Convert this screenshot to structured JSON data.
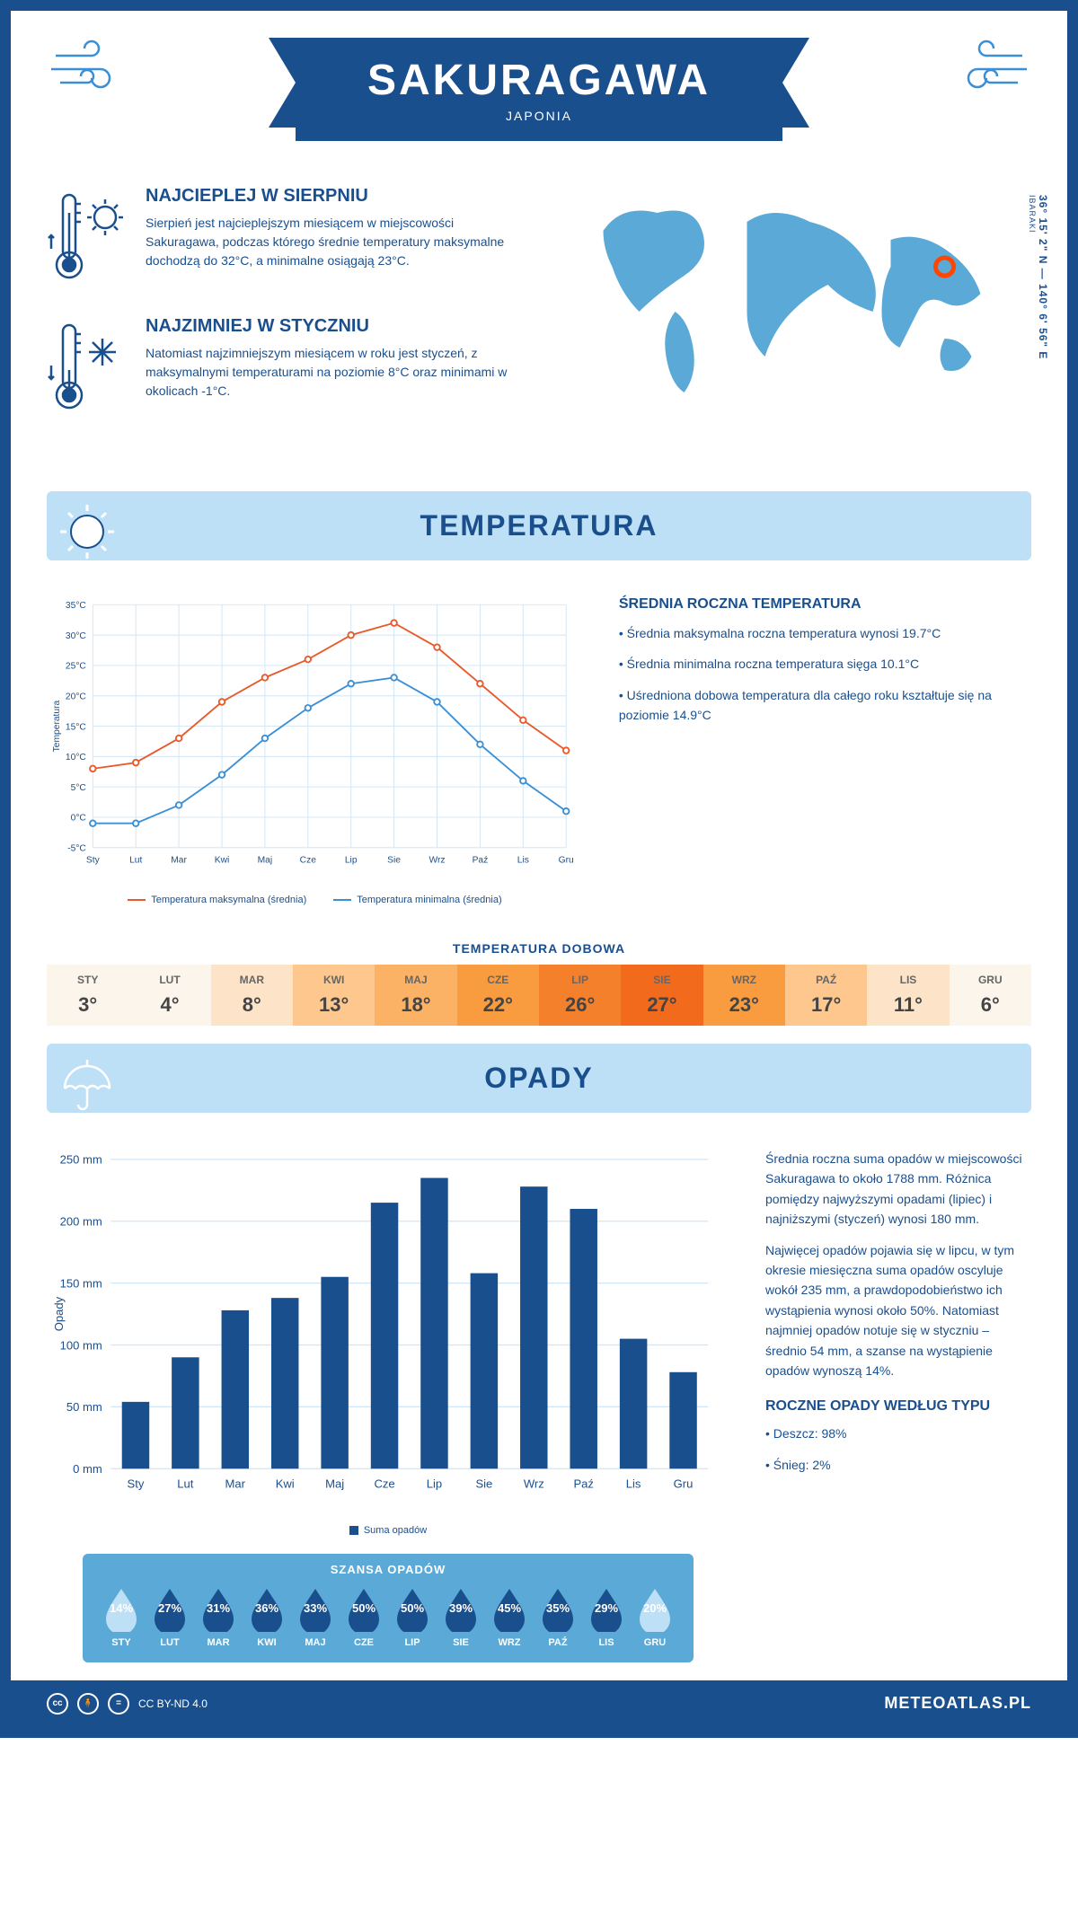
{
  "header": {
    "title": "SAKURAGAWA",
    "subtitle": "JAPONIA"
  },
  "coords": {
    "line": "36° 15' 2\" N — 140° 6' 56\" E",
    "region": "IBARAKI"
  },
  "facts": {
    "warm": {
      "title": "NAJCIEPLEJ W SIERPNIU",
      "text": "Sierpień jest najcieplejszym miesiącem w miejscowości Sakuragawa, podczas którego średnie temperatury maksymalne dochodzą do 32°C, a minimalne osiągają 23°C."
    },
    "cold": {
      "title": "NAJZIMNIEJ W STYCZNIU",
      "text": "Natomiast najzimniejszym miesiącem w roku jest styczeń, z maksymalnymi temperaturami na poziomie 8°C oraz minimami w okolicach -1°C."
    }
  },
  "temperature_section": {
    "title": "TEMPERATURA",
    "summary_title": "ŚREDNIA ROCZNA TEMPERATURA",
    "bullets": [
      "• Średnia maksymalna roczna temperatura wynosi 19.7°C",
      "• Średnia minimalna roczna temperatura sięga 10.1°C",
      "• Uśredniona dobowa temperatura dla całego roku kształtuje się na poziomie 14.9°C"
    ],
    "chart": {
      "type": "line",
      "months": [
        "Sty",
        "Lut",
        "Mar",
        "Kwi",
        "Maj",
        "Cze",
        "Lip",
        "Sie",
        "Wrz",
        "Paź",
        "Lis",
        "Gru"
      ],
      "max_series": [
        8,
        9,
        13,
        19,
        23,
        26,
        30,
        32,
        28,
        22,
        16,
        11
      ],
      "min_series": [
        -1,
        -1,
        2,
        7,
        13,
        18,
        22,
        23,
        19,
        12,
        6,
        1
      ],
      "max_color": "#e85a2a",
      "min_color": "#3a8fd6",
      "ylabel": "Temperatura",
      "ylim": [
        -5,
        35
      ],
      "ytick_step": 5,
      "grid_color": "#d0e5f5",
      "background": "#ffffff",
      "legend_max": "Temperatura maksymalna (średnia)",
      "legend_min": "Temperatura minimalna (średnia)"
    },
    "daily_title": "TEMPERATURA DOBOWA",
    "daily": {
      "months": [
        "STY",
        "LUT",
        "MAR",
        "KWI",
        "MAJ",
        "CZE",
        "LIP",
        "SIE",
        "WRZ",
        "PAŹ",
        "LIS",
        "GRU"
      ],
      "values": [
        "3°",
        "4°",
        "8°",
        "13°",
        "18°",
        "22°",
        "26°",
        "27°",
        "23°",
        "17°",
        "11°",
        "6°"
      ],
      "colors": [
        "#fbf5ec",
        "#fbf5ec",
        "#fde4c8",
        "#fdc78e",
        "#fcb264",
        "#f99b3f",
        "#f5802c",
        "#f26a1b",
        "#f99b3f",
        "#fdc78e",
        "#fde4c8",
        "#fbf5ec"
      ]
    }
  },
  "rain_section": {
    "title": "OPADY",
    "paragraphs": [
      "Średnia roczna suma opadów w miejscowości Sakuragawa to około 1788 mm. Różnica pomiędzy najwyższymi opadami (lipiec) i najniższymi (styczeń) wynosi 180 mm.",
      "Najwięcej opadów pojawia się w lipcu, w tym okresie miesięczna suma opadów oscyluje wokół 235 mm, a prawdopodobieństwo ich wystąpienia wynosi około 50%. Natomiast najmniej opadów notuje się w styczniu – średnio 54 mm, a szanse na wystąpienie opadów wynoszą 14%."
    ],
    "chart": {
      "type": "bar",
      "months": [
        "Sty",
        "Lut",
        "Mar",
        "Kwi",
        "Maj",
        "Cze",
        "Lip",
        "Sie",
        "Wrz",
        "Paź",
        "Lis",
        "Gru"
      ],
      "values": [
        54,
        90,
        128,
        138,
        155,
        215,
        235,
        158,
        228,
        210,
        105,
        78
      ],
      "bar_color": "#1a4f8e",
      "ylabel": "Opady",
      "ylim": [
        0,
        250
      ],
      "ytick_step": 50,
      "grid_color": "#d0e5f5",
      "legend": "Suma opadów"
    },
    "chance_title": "SZANSA OPADÓW",
    "chance": {
      "months": [
        "STY",
        "LUT",
        "MAR",
        "KWI",
        "MAJ",
        "CZE",
        "LIP",
        "SIE",
        "WRZ",
        "PAŹ",
        "LIS",
        "GRU"
      ],
      "values": [
        "14%",
        "27%",
        "31%",
        "36%",
        "33%",
        "50%",
        "50%",
        "39%",
        "45%",
        "35%",
        "29%",
        "20%"
      ],
      "colors": [
        "#bde0f7",
        "#1a4f8e",
        "#1a4f8e",
        "#1a4f8e",
        "#1a4f8e",
        "#1a4f8e",
        "#1a4f8e",
        "#1a4f8e",
        "#1a4f8e",
        "#1a4f8e",
        "#1a4f8e",
        "#bde0f7"
      ]
    },
    "yearly_title": "ROCZNE OPADY WEDŁUG TYPU",
    "yearly": [
      "• Deszcz: 98%",
      "• Śnieg: 2%"
    ]
  },
  "footer": {
    "license": "CC BY-ND 4.0",
    "site": "METEOATLAS.PL"
  }
}
